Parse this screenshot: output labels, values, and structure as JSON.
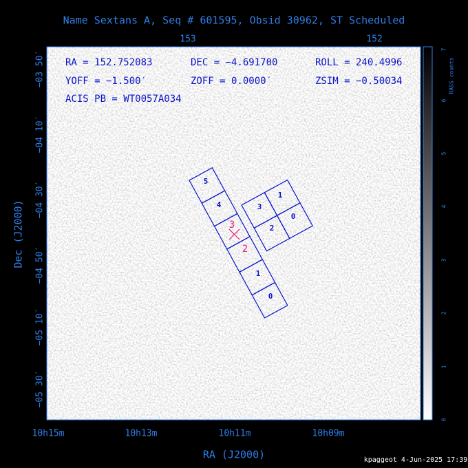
{
  "header": {
    "title": "Name Sextans A, Seq # 601595, Obsid 30962, ST Scheduled"
  },
  "info": [
    "RA = 152.752083",
    "DEC = −4.691700",
    "ROLL = 240.4996",
    "YOFF = −1.500′",
    "ZOFF = 0.0000′",
    "ZSIM = −0.50034",
    "ACIS PB = WT0057A034"
  ],
  "axes": {
    "x_label": "RA (J2000)",
    "y_label": "Dec (J2000)",
    "top_ticks": [
      "153",
      "152"
    ],
    "bottom_ticks": [
      "10h15m",
      "10h13m",
      "10h11m",
      "10h09m"
    ],
    "left_ticks": [
      "−03 50′",
      "−04 10′",
      "−04 30′",
      "−04 50′",
      "−05 10′",
      "−05 30′"
    ]
  },
  "colorbar": {
    "label": "RASS counts",
    "ticks": [
      "0",
      "1",
      "2",
      "3",
      "4",
      "5",
      "6",
      "7"
    ]
  },
  "chips": {
    "i_array": [
      "3",
      "1",
      "2",
      "0"
    ],
    "s_array": [
      "5",
      "4",
      "1",
      "0"
    ],
    "aimpoint": [
      "3",
      "2"
    ]
  },
  "footer": "kpaggeot  4-Jun-2025 17:39"
}
